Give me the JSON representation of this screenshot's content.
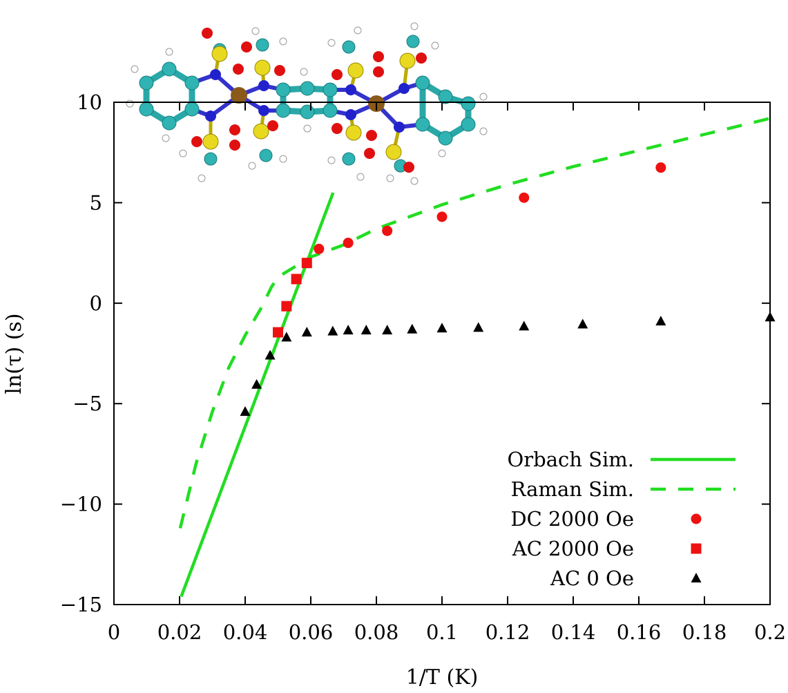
{
  "chart_data": {
    "type": "scatter",
    "title": "",
    "xlabel": "1/T (K)",
    "ylabel": "ln(τ) (s)",
    "xlim": [
      0,
      0.2
    ],
    "ylim": [
      -15,
      10
    ],
    "x_ticks": [
      0,
      0.02,
      0.04,
      0.06,
      0.08,
      0.1,
      0.12,
      0.14,
      0.16,
      0.18,
      0.2
    ],
    "x_tick_labels": [
      "0",
      "0.02",
      "0.04",
      "0.06",
      "0.08",
      "0.1",
      "0.12",
      "0.14",
      "0.16",
      "0.18",
      "0.2"
    ],
    "y_ticks": [
      -15,
      -10,
      -5,
      0,
      5,
      10
    ],
    "y_tick_labels": [
      "−15",
      "−10",
      "−5",
      "0",
      "5",
      "10"
    ],
    "grid": false,
    "legend_position": "bottom-right",
    "series": [
      {
        "name": "Orbach Sim.",
        "kind": "line",
        "style": "solid",
        "color": "#22dd22",
        "points": [
          [
            0.0205,
            -14.6
          ],
          [
            0.0668,
            5.5
          ]
        ]
      },
      {
        "name": "Raman Sim.",
        "kind": "line",
        "style": "dashed",
        "color": "#22dd22",
        "points": [
          [
            0.0202,
            -11.2
          ],
          [
            0.025,
            -8.0
          ],
          [
            0.03,
            -5.4
          ],
          [
            0.035,
            -3.2
          ],
          [
            0.04,
            -1.6
          ],
          [
            0.045,
            -0.2
          ],
          [
            0.048,
            0.8
          ],
          [
            0.05,
            1.3
          ],
          [
            0.052,
            1.5
          ],
          [
            0.055,
            1.8
          ],
          [
            0.06,
            2.3
          ],
          [
            0.07,
            2.9
          ],
          [
            0.08,
            3.7
          ],
          [
            0.09,
            4.3
          ],
          [
            0.1,
            4.9
          ],
          [
            0.12,
            5.9
          ],
          [
            0.14,
            6.8
          ],
          [
            0.16,
            7.6
          ],
          [
            0.18,
            8.4
          ],
          [
            0.2,
            9.2
          ]
        ]
      },
      {
        "name": "DC 2000 Oe",
        "kind": "scatter",
        "marker": "circle",
        "color": "#ee1111",
        "points": [
          [
            0.0625,
            2.7
          ],
          [
            0.0714,
            3.0
          ],
          [
            0.0833,
            3.6
          ],
          [
            0.1,
            4.3
          ],
          [
            0.125,
            5.25
          ],
          [
            0.1667,
            6.75
          ]
        ]
      },
      {
        "name": "AC 2000 Oe",
        "kind": "scatter",
        "marker": "square",
        "color": "#ee1111",
        "points": [
          [
            0.05,
            -1.45
          ],
          [
            0.0526,
            -0.15
          ],
          [
            0.0556,
            1.2
          ],
          [
            0.0588,
            2.0
          ]
        ]
      },
      {
        "name": "AC 0 Oe",
        "kind": "scatter",
        "marker": "triangle",
        "color": "#000000",
        "points": [
          [
            0.04,
            -5.4
          ],
          [
            0.0435,
            -4.05
          ],
          [
            0.0476,
            -2.6
          ],
          [
            0.0526,
            -1.7
          ],
          [
            0.0588,
            -1.45
          ],
          [
            0.0667,
            -1.4
          ],
          [
            0.0714,
            -1.35
          ],
          [
            0.0769,
            -1.35
          ],
          [
            0.0833,
            -1.35
          ],
          [
            0.0909,
            -1.3
          ],
          [
            0.1,
            -1.25
          ],
          [
            0.1111,
            -1.22
          ],
          [
            0.125,
            -1.15
          ],
          [
            0.1429,
            -1.05
          ],
          [
            0.1667,
            -0.9
          ],
          [
            0.2,
            -0.7
          ]
        ]
      }
    ]
  }
}
